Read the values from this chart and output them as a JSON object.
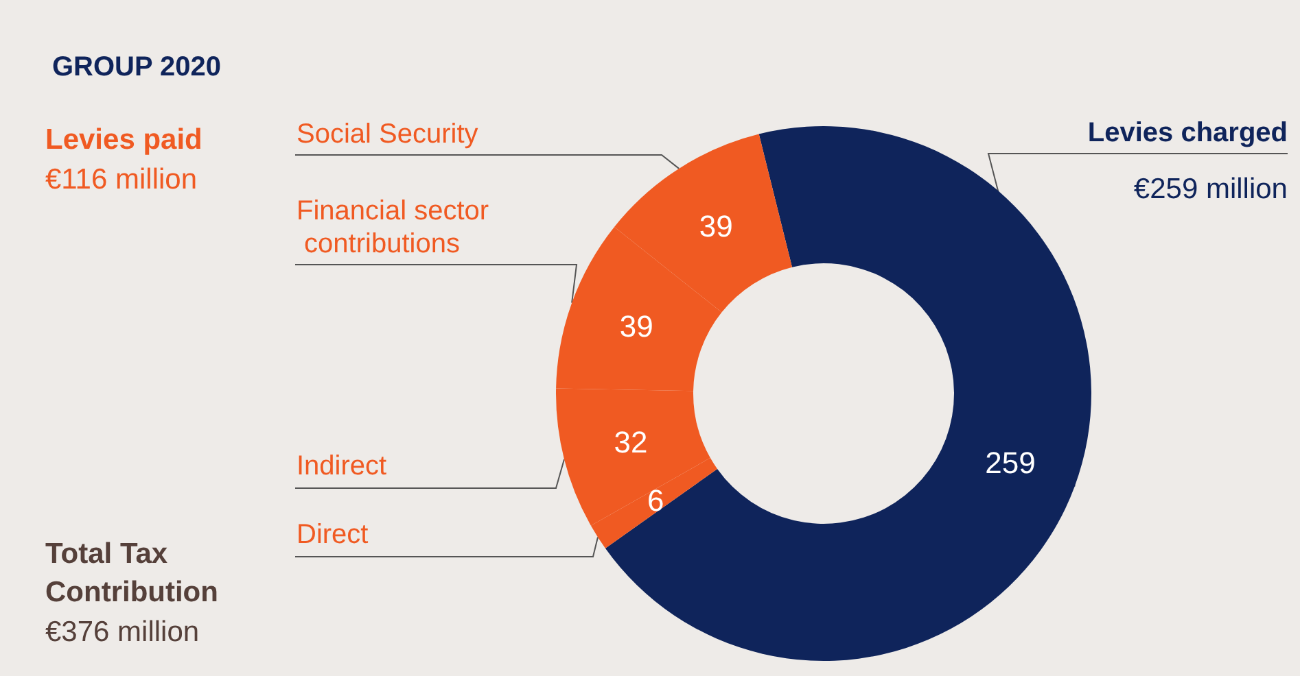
{
  "chart_data": {
    "type": "donut",
    "title": "GROUP 2020",
    "categories": [
      "Levies charged",
      "Direct",
      "Indirect",
      "Financial sector contributions",
      "Social Security"
    ],
    "values": [
      259,
      6,
      32,
      39,
      39
    ],
    "colors": [
      "#0f245b",
      "#f05a22",
      "#f05a22",
      "#f05a22",
      "#f05a22"
    ],
    "data_labels": true,
    "legend": false,
    "annotations": [
      "Levies paid",
      "€116 million",
      "Total Tax Contribution",
      "€376 million",
      "€259 million"
    ]
  }
}
